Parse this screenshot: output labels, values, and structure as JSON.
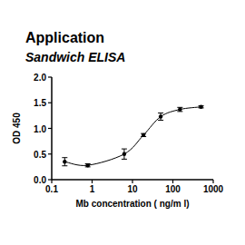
{
  "chart_data": {
    "type": "line",
    "title": "Application",
    "subtitle": "Sandwich ELISA",
    "x_label": "Mb concentration ( ng/m l)",
    "y_label": "OD 450",
    "x": [
      0.21,
      0.78,
      6.25,
      18.75,
      50,
      150,
      500
    ],
    "values": [
      0.35,
      0.28,
      0.5,
      0.87,
      1.23,
      1.37,
      1.42
    ],
    "errors": [
      0.08,
      0.03,
      0.1,
      0.03,
      0.07,
      0.04,
      0.02
    ],
    "color": "#000000",
    "marker": "circle",
    "log": "x",
    "xlim": [
      0.1,
      1000
    ],
    "xticks": [
      0.1,
      1,
      10,
      100,
      1000
    ],
    "ylim": [
      0,
      2
    ],
    "yticks": [
      {
        "value": 0,
        "label": "0.0"
      },
      0.5,
      {
        "value": 1,
        "label": "1.0"
      },
      1.5,
      {
        "value": 2,
        "label": "2.0"
      }
    ],
    "grid": false
  }
}
